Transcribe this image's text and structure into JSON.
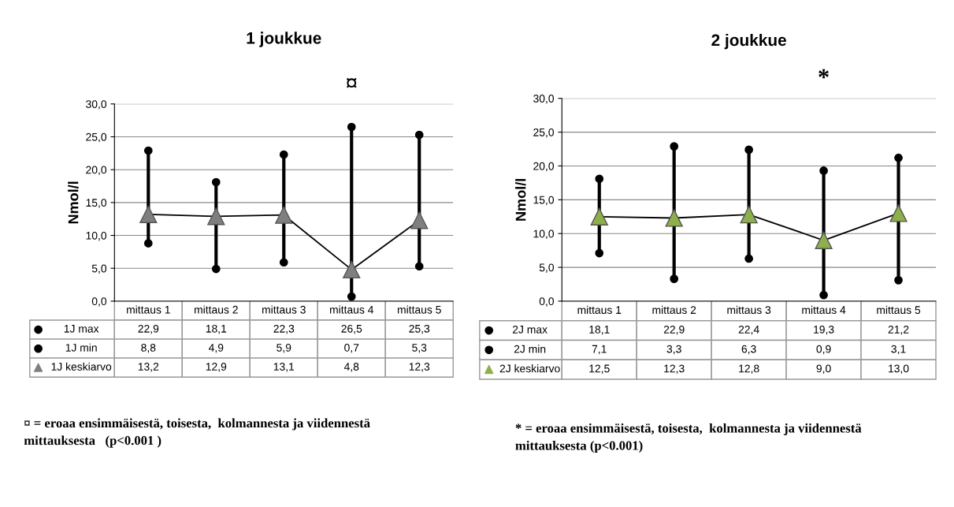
{
  "chart_data": [
    {
      "type": "line",
      "title": "1 joukkue",
      "ylabel": "Nmol/l",
      "categories": [
        "mittaus 1",
        "mittaus 2",
        "mittaus 3",
        "mittaus 4",
        "mittaus 5"
      ],
      "ylim": [
        0,
        30
      ],
      "yticks": [
        {
          "value": 0,
          "label": "0,0"
        },
        {
          "value": 5,
          "label": "5,0"
        },
        {
          "value": 10,
          "label": "10,0"
        },
        {
          "value": 15,
          "label": "15,0"
        },
        {
          "value": 20,
          "label": "20,0"
        },
        {
          "value": 25,
          "label": "25,0"
        },
        {
          "value": 30,
          "label": "30,0"
        }
      ],
      "grid": "y",
      "legend": "bottom",
      "series": [
        {
          "name": "1J max",
          "type": "scatter",
          "marker": "circle",
          "color": "#000000",
          "values": [
            22.9,
            18.1,
            22.3,
            26.5,
            25.3
          ],
          "value_labels": [
            "22,9",
            "18,1",
            "22,3",
            "26,5",
            "25,3"
          ]
        },
        {
          "name": "1J min",
          "type": "scatter",
          "marker": "circle",
          "color": "#000000",
          "values": [
            8.8,
            4.9,
            5.9,
            0.7,
            5.3
          ],
          "value_labels": [
            "8,8",
            "4,9",
            "5,9",
            "0,7",
            "5,3"
          ]
        },
        {
          "name": "1J keskiarvo",
          "marker": "triangle",
          "color": "#7f7f7f",
          "values": [
            13.2,
            12.9,
            13.1,
            4.8,
            12.3
          ],
          "value_labels": [
            "13,2",
            "12,9",
            "13,1",
            "4,8",
            "12,3"
          ]
        }
      ],
      "annotations": [
        "¤",
        "¤ = eroaa ensimmäisestä, toisesta,  kolmannesta ja viidennestä\nmittauksesta   (p<0.001 )"
      ]
    },
    {
      "type": "line",
      "title": "2 joukkue",
      "ylabel": "Nmol/l",
      "categories": [
        "mittaus 1",
        "mittaus 2",
        "mittaus 3",
        "mittaus 4",
        "mittaus 5"
      ],
      "ylim": [
        0,
        30
      ],
      "yticks": [
        {
          "value": 0,
          "label": "0,0"
        },
        {
          "value": 5,
          "label": "5,0"
        },
        {
          "value": 10,
          "label": "10,0"
        },
        {
          "value": 15,
          "label": "15,0"
        },
        {
          "value": 20,
          "label": "20,0"
        },
        {
          "value": 25,
          "label": "25,0"
        },
        {
          "value": 30,
          "label": "30,0"
        }
      ],
      "grid": "y",
      "legend": "bottom",
      "series": [
        {
          "name": "2J max",
          "type": "scatter",
          "marker": "circle",
          "color": "#000000",
          "values": [
            18.1,
            22.9,
            22.4,
            19.3,
            21.2
          ],
          "value_labels": [
            "18,1",
            "22,9",
            "22,4",
            "19,3",
            "21,2"
          ]
        },
        {
          "name": "2J min",
          "type": "scatter",
          "marker": "circle",
          "color": "#000000",
          "values": [
            7.1,
            3.3,
            6.3,
            0.9,
            3.1
          ],
          "value_labels": [
            "7,1",
            "3,3",
            "6,3",
            "0,9",
            "3,1"
          ]
        },
        {
          "name": "2J keskiarvo",
          "marker": "triangle",
          "color": "#8db04a",
          "values": [
            12.5,
            12.3,
            12.8,
            9.0,
            13.0
          ],
          "value_labels": [
            "12,5",
            "12,3",
            "12,8",
            "9,0",
            "13,0"
          ]
        }
      ],
      "annotations": [
        "*",
        "* = eroaa ensimmäisestä, toisesta,  kolmannesta ja viidennestä\nmittauksesta (p<0.001)"
      ]
    }
  ]
}
